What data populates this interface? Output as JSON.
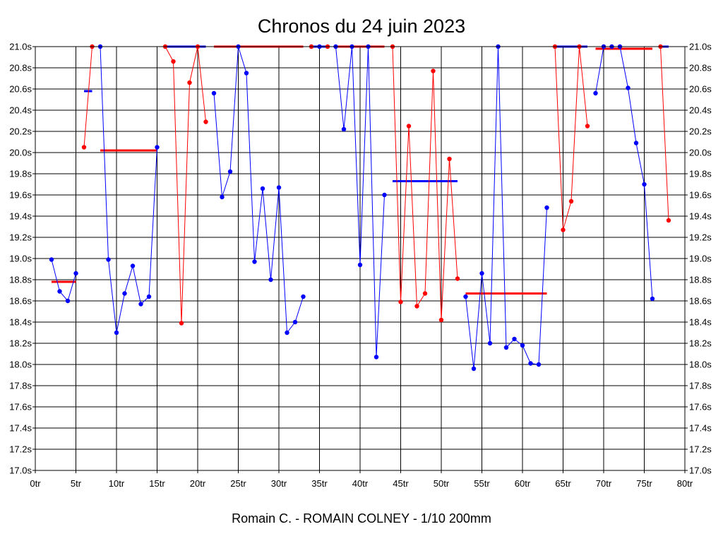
{
  "chart_data": {
    "type": "line",
    "title": "Chronos du 24 juin 2023",
    "subtitle": "Romain C. - ROMAIN COLNEY - 1/10 200mm",
    "xlim": [
      0,
      80
    ],
    "ylim": [
      17.0,
      21.0
    ],
    "x_ticks": [
      {
        "v": 0,
        "label": "0tr"
      },
      {
        "v": 5,
        "label": "5tr"
      },
      {
        "v": 10,
        "label": "10tr"
      },
      {
        "v": 15,
        "label": "15tr"
      },
      {
        "v": 20,
        "label": "20tr"
      },
      {
        "v": 25,
        "label": "25tr"
      },
      {
        "v": 30,
        "label": "30tr"
      },
      {
        "v": 35,
        "label": "35tr"
      },
      {
        "v": 40,
        "label": "40tr"
      },
      {
        "v": 45,
        "label": "45tr"
      },
      {
        "v": 50,
        "label": "50tr"
      },
      {
        "v": 55,
        "label": "55tr"
      },
      {
        "v": 60,
        "label": "60tr"
      },
      {
        "v": 65,
        "label": "65tr"
      },
      {
        "v": 70,
        "label": "70tr"
      },
      {
        "v": 75,
        "label": "75tr"
      },
      {
        "v": 80,
        "label": "80tr"
      }
    ],
    "y_ticks": [
      {
        "v": 17.0,
        "label": "17.0s"
      },
      {
        "v": 17.2,
        "label": "17.2s"
      },
      {
        "v": 17.4,
        "label": "17.4s"
      },
      {
        "v": 17.6,
        "label": "17.6s"
      },
      {
        "v": 17.8,
        "label": "17.8s"
      },
      {
        "v": 18.0,
        "label": "18.0s"
      },
      {
        "v": 18.2,
        "label": "18.2s"
      },
      {
        "v": 18.4,
        "label": "18.4s"
      },
      {
        "v": 18.6,
        "label": "18.6s"
      },
      {
        "v": 18.8,
        "label": "18.8s"
      },
      {
        "v": 19.0,
        "label": "19.0s"
      },
      {
        "v": 19.2,
        "label": "19.2s"
      },
      {
        "v": 19.4,
        "label": "19.4s"
      },
      {
        "v": 19.6,
        "label": "19.6s"
      },
      {
        "v": 19.8,
        "label": "19.8s"
      },
      {
        "v": 20.0,
        "label": "20.0s"
      },
      {
        "v": 20.2,
        "label": "20.2s"
      },
      {
        "v": 20.4,
        "label": "20.4s"
      },
      {
        "v": 20.6,
        "label": "20.6s"
      },
      {
        "v": 20.8,
        "label": "20.8s"
      },
      {
        "v": 21.0,
        "label": "21.0s"
      }
    ],
    "grid": true,
    "colors": {
      "blue": "#0000ff",
      "red": "#ff0000",
      "grid": "#000000",
      "axis": "#000000"
    },
    "segments": [
      {
        "color": "blue",
        "points": [
          [
            2,
            18.99
          ],
          [
            3,
            18.69
          ],
          [
            4,
            18.6
          ],
          [
            5,
            18.86
          ]
        ]
      },
      {
        "color": "red",
        "points": [
          [
            6,
            20.05
          ],
          [
            7,
            21.0
          ]
        ]
      },
      {
        "color": "blue",
        "points": [
          [
            8,
            21.0
          ],
          [
            9,
            18.99
          ],
          [
            10,
            18.3
          ],
          [
            11,
            18.67
          ],
          [
            12,
            18.93
          ],
          [
            13,
            18.57
          ],
          [
            14,
            18.64
          ],
          [
            15,
            20.05
          ]
        ]
      },
      {
        "color": "red",
        "points": [
          [
            16,
            21.0
          ],
          [
            17,
            20.86
          ],
          [
            18,
            18.39
          ],
          [
            19,
            20.66
          ],
          [
            20,
            21.0
          ],
          [
            21,
            20.29
          ]
        ]
      },
      {
        "color": "blue",
        "points": [
          [
            22,
            20.56
          ],
          [
            23,
            19.58
          ],
          [
            24,
            19.82
          ],
          [
            25,
            21.0
          ],
          [
            26,
            20.75
          ],
          [
            27,
            18.97
          ],
          [
            28,
            19.66
          ],
          [
            29,
            18.8
          ],
          [
            30,
            19.67
          ],
          [
            31,
            18.3
          ],
          [
            32,
            18.4
          ],
          [
            33,
            18.64
          ]
        ]
      },
      {
        "color": "red",
        "points": [
          [
            34,
            21.0
          ]
        ]
      },
      {
        "color": "blue",
        "points": [
          [
            35,
            21.0
          ]
        ]
      },
      {
        "color": "red",
        "points": [
          [
            36,
            21.0
          ]
        ]
      },
      {
        "color": "blue",
        "points": [
          [
            37,
            21.0
          ],
          [
            38,
            20.22
          ],
          [
            39,
            21.0
          ],
          [
            40,
            18.94
          ],
          [
            41,
            21.0
          ],
          [
            42,
            18.07
          ],
          [
            43,
            19.6
          ]
        ]
      },
      {
        "color": "red",
        "points": [
          [
            44,
            21.0
          ],
          [
            45,
            18.59
          ],
          [
            46,
            20.25
          ],
          [
            47,
            18.55
          ],
          [
            48,
            18.67
          ],
          [
            49,
            20.77
          ],
          [
            50,
            18.42
          ],
          [
            51,
            19.94
          ],
          [
            52,
            18.81
          ]
        ]
      },
      {
        "color": "blue",
        "points": [
          [
            53,
            18.64
          ],
          [
            54,
            17.96
          ],
          [
            55,
            18.86
          ],
          [
            56,
            18.2
          ],
          [
            57,
            21.0
          ],
          [
            58,
            18.16
          ],
          [
            59,
            18.24
          ],
          [
            60,
            18.18
          ],
          [
            61,
            18.01
          ],
          [
            62,
            18.0
          ],
          [
            63,
            19.48
          ]
        ]
      },
      {
        "color": "red",
        "points": [
          [
            64,
            21.0
          ],
          [
            65,
            19.27
          ],
          [
            66,
            19.54
          ],
          [
            67,
            21.0
          ],
          [
            68,
            20.25
          ]
        ]
      },
      {
        "color": "blue",
        "points": [
          [
            69,
            20.56
          ],
          [
            70,
            21.0
          ],
          [
            71,
            21.0
          ],
          [
            72,
            21.0
          ],
          [
            73,
            20.61
          ],
          [
            74,
            20.09
          ],
          [
            75,
            19.7
          ],
          [
            76,
            18.62
          ]
        ]
      },
      {
        "color": "red",
        "points": [
          [
            77,
            21.0
          ],
          [
            78,
            19.36
          ]
        ]
      }
    ],
    "averages": [
      {
        "color": "red",
        "x": [
          2,
          5
        ],
        "y": 18.78
      },
      {
        "color": "blue",
        "x": [
          6,
          7
        ],
        "y": 20.58
      },
      {
        "color": "red",
        "x": [
          8,
          15
        ],
        "y": 20.02
      },
      {
        "color": "blue",
        "x": [
          16,
          21
        ],
        "y": 21.0
      },
      {
        "color": "red",
        "x": [
          22,
          33
        ],
        "y": 21.0
      },
      {
        "color": "blue",
        "x": [
          34,
          36
        ],
        "y": 21.0
      },
      {
        "color": "red",
        "x": [
          37,
          43
        ],
        "y": 21.0
      },
      {
        "color": "blue",
        "x": [
          44,
          52
        ],
        "y": 19.73
      },
      {
        "color": "red",
        "x": [
          53,
          63
        ],
        "y": 18.67
      },
      {
        "color": "blue",
        "x": [
          64,
          68
        ],
        "y": 21.0
      },
      {
        "color": "red",
        "x": [
          69,
          76
        ],
        "y": 20.98
      },
      {
        "color": "blue",
        "x": [
          77,
          78
        ],
        "y": 21.0
      }
    ]
  }
}
